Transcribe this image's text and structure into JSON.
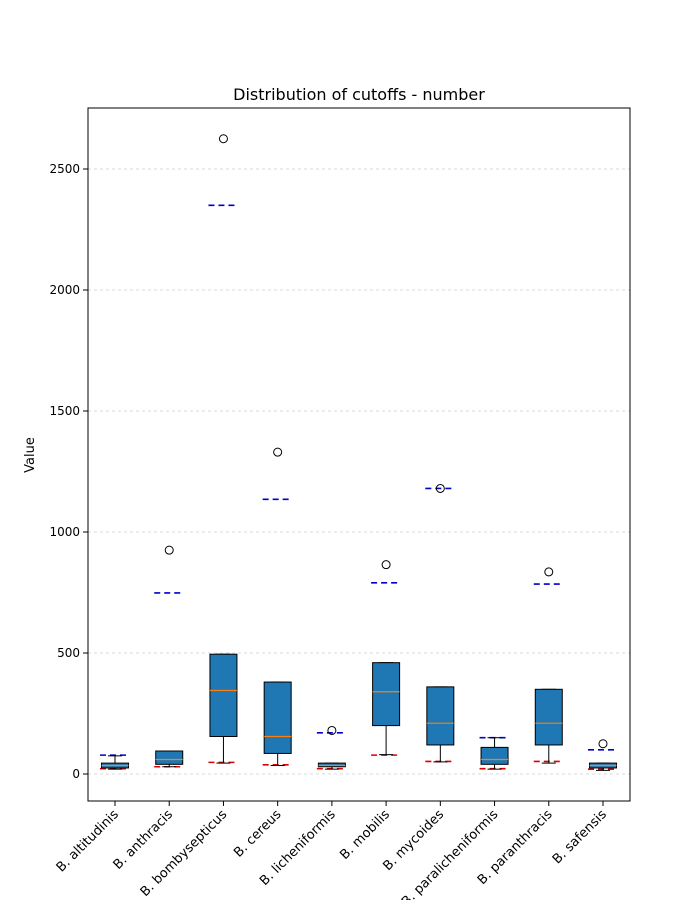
{
  "chart_data": {
    "type": "box",
    "title": "Distribution of cutoffs - number",
    "xlabel": "",
    "ylabel": "Value",
    "ylim": [
      -110,
      2750
    ],
    "yticks": [
      0,
      500,
      1000,
      1500,
      2000,
      2500
    ],
    "grid": "y-axis dashed",
    "legend": "none",
    "colors": {
      "box": "#1f77b4",
      "median": "#ff7f0e",
      "upper_marker": "#0000cc",
      "lower_marker": "#dd0000",
      "grid": "#cccccc"
    },
    "categories": [
      "B. altitudinis",
      "B. anthracis",
      "B. bombysepticus",
      "B. cereus",
      "B. licheniformis",
      "B. mobilis",
      "B. mycoides",
      "B. paralicheniformis",
      "B. paranthracis",
      "B. safensis"
    ],
    "boxes": [
      {
        "whisker_low": 20,
        "q1": 25,
        "median": 35,
        "q3": 45,
        "whisker_high": 75,
        "outliers": [],
        "upper_marker": 78,
        "lower_marker": 22
      },
      {
        "whisker_low": 30,
        "q1": 40,
        "median": 60,
        "q3": 95,
        "whisker_high": 95,
        "outliers": [
          925
        ],
        "upper_marker": 748,
        "lower_marker": 30
      },
      {
        "whisker_low": 45,
        "q1": 155,
        "median": 345,
        "q3": 495,
        "whisker_high": 495,
        "outliers": [
          2625
        ],
        "upper_marker": 2350,
        "lower_marker": 48
      },
      {
        "whisker_low": 35,
        "q1": 85,
        "median": 155,
        "q3": 380,
        "whisker_high": 380,
        "outliers": [
          1330
        ],
        "upper_marker": 1135,
        "lower_marker": 38
      },
      {
        "whisker_low": 20,
        "q1": 30,
        "median": 35,
        "q3": 45,
        "whisker_high": 45,
        "outliers": [
          180
        ],
        "upper_marker": 170,
        "lower_marker": 22
      },
      {
        "whisker_low": 80,
        "q1": 200,
        "median": 340,
        "q3": 460,
        "whisker_high": 460,
        "outliers": [
          865
        ],
        "upper_marker": 790,
        "lower_marker": 78
      },
      {
        "whisker_low": 50,
        "q1": 120,
        "median": 210,
        "q3": 360,
        "whisker_high": 360,
        "outliers": [
          1180
        ],
        "upper_marker": 1180,
        "lower_marker": 52
      },
      {
        "whisker_low": 20,
        "q1": 40,
        "median": 60,
        "q3": 110,
        "whisker_high": 150,
        "outliers": [],
        "upper_marker": 150,
        "lower_marker": 22
      },
      {
        "whisker_low": 45,
        "q1": 120,
        "median": 210,
        "q3": 350,
        "whisker_high": 350,
        "outliers": [
          835
        ],
        "upper_marker": 785,
        "lower_marker": 52
      },
      {
        "whisker_low": 15,
        "q1": 25,
        "median": 35,
        "q3": 45,
        "whisker_high": 45,
        "outliers": [
          125
        ],
        "upper_marker": 100,
        "lower_marker": 20
      }
    ]
  }
}
